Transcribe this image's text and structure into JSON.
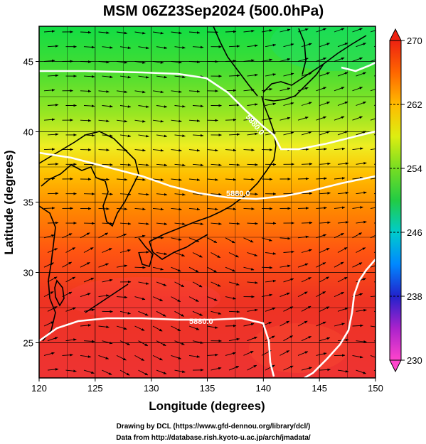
{
  "title": "MSM 06Z23Sep2024 (500.0hPa)",
  "xlabel": "Longitude (degrees)",
  "ylabel": "Latitude  (degrees)",
  "credits": [
    "Drawing by DCL (https://www.gfd-dennou.org/library/dcl/)",
    "Data from http://database.rish.kyoto-u.ac.jp/arch/jmadata/"
  ],
  "chart_data": {
    "type": "heatmap",
    "xlim": [
      120,
      150
    ],
    "ylim": [
      22.5,
      47.5
    ],
    "x_ticks": [
      120,
      125,
      130,
      135,
      140,
      145,
      150
    ],
    "y_ticks": [
      25,
      30,
      35,
      40,
      45
    ],
    "colorbar": {
      "min": 230,
      "max": 270,
      "ticks": [
        230,
        238,
        246,
        254,
        262,
        270
      ],
      "colors": [
        "#ff33cc",
        "#aa22cc",
        "#2222cc",
        "#0077ff",
        "#00cccc",
        "#22cc44",
        "#66dd22",
        "#ccee11",
        "#ffdd00",
        "#ff9900",
        "#ff5500",
        "#ee2211"
      ]
    },
    "contour_labels": [
      "5880.0",
      "5880.0",
      "5880.0"
    ],
    "grid": true
  },
  "colors": {
    "contour": "#ffffff",
    "vector": "#000000",
    "coast": "#000000"
  }
}
